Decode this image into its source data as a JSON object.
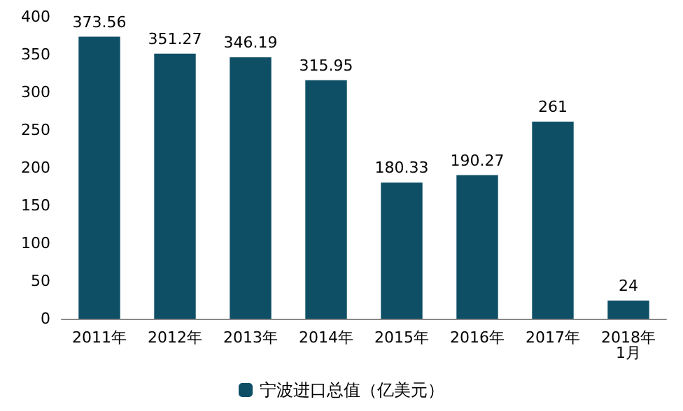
{
  "chart_data": {
    "type": "bar",
    "categories": [
      "2011年",
      "2012年",
      "2013年",
      "2014年",
      "2015年",
      "2016年",
      "2017年",
      "2018年\n1月"
    ],
    "series": [
      {
        "name": "宁波进口总值（亿美元）",
        "color": "#0e4f66",
        "values": [
          373.56,
          351.27,
          346.19,
          315.95,
          180.33,
          190.27,
          261,
          24
        ]
      }
    ],
    "ylim": [
      0,
      400
    ],
    "yticks": [
      0,
      50,
      100,
      150,
      200,
      250,
      300,
      350,
      400
    ],
    "data_labels": true,
    "legend": "bottom"
  }
}
